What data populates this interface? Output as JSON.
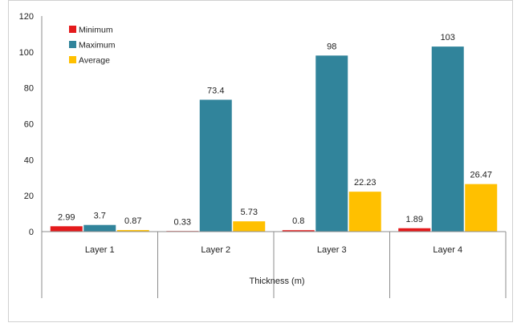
{
  "chart_data": {
    "type": "bar",
    "title": "",
    "xlabel": "Thickness (m)",
    "ylabel": "",
    "categories": [
      "Layer 1",
      "Layer 2",
      "Layer 3",
      "Layer 4"
    ],
    "series": [
      {
        "name": "Minimum",
        "values": [
          2.99,
          0.33,
          0.8,
          1.89
        ],
        "labels": [
          "2.99",
          "0.33",
          "0.8",
          "1.89"
        ],
        "color": "#e41a1c"
      },
      {
        "name": "Maximum",
        "values": [
          3.7,
          73.4,
          98,
          103
        ],
        "labels": [
          "3.7",
          "73.4",
          "98",
          "103"
        ],
        "color": "#31849b"
      },
      {
        "name": "Average",
        "values": [
          0.87,
          5.73,
          22.23,
          26.47
        ],
        "labels": [
          "0.87",
          "5.73",
          "22.23",
          "26.47"
        ],
        "color": "#ffc000"
      }
    ],
    "ylim": [
      0,
      120
    ],
    "yticks": [
      0,
      20,
      40,
      60,
      80,
      100,
      120
    ],
    "grid": false,
    "legend_position": "top-left"
  }
}
